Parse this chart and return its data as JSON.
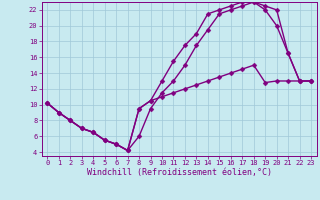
{
  "xlabel": "Windchill (Refroidissement éolien,°C)",
  "bg_color": "#c8eaf0",
  "grid_color": "#a0c8d8",
  "line_color": "#800080",
  "marker": "D",
  "markersize": 2.5,
  "linewidth": 1.0,
  "xlim": [
    -0.5,
    23.5
  ],
  "ylim": [
    3.5,
    23.0
  ],
  "xticks": [
    0,
    1,
    2,
    3,
    4,
    5,
    6,
    7,
    8,
    9,
    10,
    11,
    12,
    13,
    14,
    15,
    16,
    17,
    18,
    19,
    20,
    21,
    22,
    23
  ],
  "yticks": [
    4,
    6,
    8,
    10,
    12,
    14,
    16,
    18,
    20,
    22
  ],
  "tick_fontsize": 5.0,
  "xlabel_fontsize": 6.0,
  "line1_x": [
    0,
    1,
    2,
    3,
    4,
    5,
    6,
    7,
    8,
    9,
    10,
    11,
    12,
    13,
    14,
    15,
    16,
    17,
    18,
    19,
    20,
    21,
    22,
    23
  ],
  "line1_y": [
    10.2,
    9.0,
    8.0,
    7.0,
    6.5,
    5.5,
    5.0,
    4.2,
    9.5,
    10.5,
    11.0,
    11.5,
    12.0,
    12.5,
    13.0,
    13.5,
    14.0,
    14.5,
    15.0,
    12.8,
    13.0,
    13.0,
    13.0,
    13.0
  ],
  "line2_x": [
    0,
    1,
    2,
    3,
    4,
    5,
    6,
    7,
    8,
    9,
    10,
    11,
    12,
    13,
    14,
    15,
    16,
    17,
    18,
    19,
    20,
    21,
    22,
    23
  ],
  "line2_y": [
    10.2,
    9.0,
    8.0,
    7.0,
    6.5,
    5.5,
    5.0,
    4.2,
    6.0,
    9.5,
    11.5,
    13.0,
    15.0,
    17.5,
    19.5,
    21.5,
    22.0,
    22.5,
    23.0,
    22.0,
    20.0,
    16.5,
    13.0,
    13.0
  ],
  "line3_x": [
    0,
    1,
    2,
    3,
    4,
    5,
    6,
    7,
    8,
    9,
    10,
    11,
    12,
    13,
    14,
    15,
    16,
    17,
    18,
    19,
    20,
    21,
    22,
    23
  ],
  "line3_y": [
    10.2,
    9.0,
    8.0,
    7.0,
    6.5,
    5.5,
    5.0,
    4.2,
    9.5,
    10.5,
    13.0,
    15.5,
    17.5,
    19.0,
    21.5,
    22.0,
    22.5,
    23.0,
    23.0,
    22.5,
    22.0,
    16.5,
    13.0,
    13.0
  ]
}
